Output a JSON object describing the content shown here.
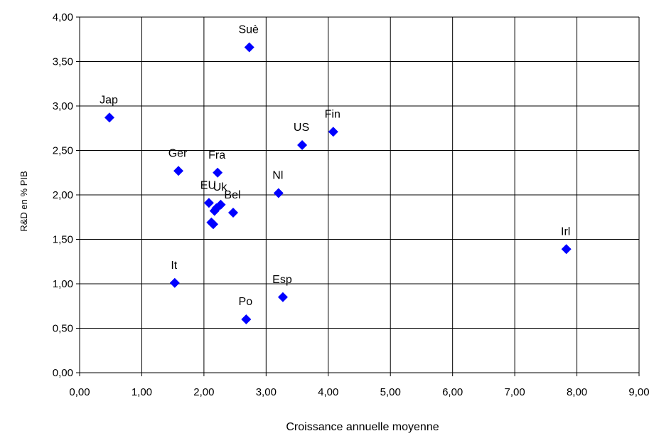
{
  "chart_data": {
    "type": "scatter",
    "xlabel": "Croissance annuelle moyenne",
    "ylabel": "R&D en % PIB",
    "xlim": [
      0,
      9
    ],
    "ylim": [
      0,
      4
    ],
    "x_ticks": [
      "0,00",
      "1,00",
      "2,00",
      "3,00",
      "4,00",
      "5,00",
      "6,00",
      "7,00",
      "8,00",
      "9,00"
    ],
    "y_ticks": [
      "0,00",
      "0,50",
      "1,00",
      "1,50",
      "2,00",
      "2,50",
      "3,00",
      "3,50",
      "4,00"
    ],
    "grid": true,
    "marker": "diamond",
    "marker_color": "#0000ff",
    "points": [
      {
        "label": "Suè",
        "x": 2.73,
        "y": 3.66
      },
      {
        "label": "Jap",
        "x": 0.48,
        "y": 2.87
      },
      {
        "label": "Fin",
        "x": 4.08,
        "y": 2.71
      },
      {
        "label": "US",
        "x": 3.58,
        "y": 2.56
      },
      {
        "label": "Ger",
        "x": 1.59,
        "y": 2.27
      },
      {
        "label": "Fra",
        "x": 2.22,
        "y": 2.25
      },
      {
        "label": "Nl",
        "x": 3.2,
        "y": 2.02
      },
      {
        "label": "EU",
        "x": 2.08,
        "y": 1.91
      },
      {
        "label": "Uk",
        "x": 2.27,
        "y": 1.89
      },
      {
        "label": "",
        "x": 2.2,
        "y": 1.85
      },
      {
        "label": "",
        "x": 2.17,
        "y": 1.82
      },
      {
        "label": "Bel",
        "x": 2.47,
        "y": 1.8
      },
      {
        "label": "",
        "x": 2.12,
        "y": 1.69
      },
      {
        "label": "",
        "x": 2.15,
        "y": 1.67
      },
      {
        "label": "Irl",
        "x": 7.83,
        "y": 1.39
      },
      {
        "label": "It",
        "x": 1.53,
        "y": 1.01
      },
      {
        "label": "Esp",
        "x": 3.27,
        "y": 0.85
      },
      {
        "label": "Po",
        "x": 2.68,
        "y": 0.6
      }
    ]
  }
}
